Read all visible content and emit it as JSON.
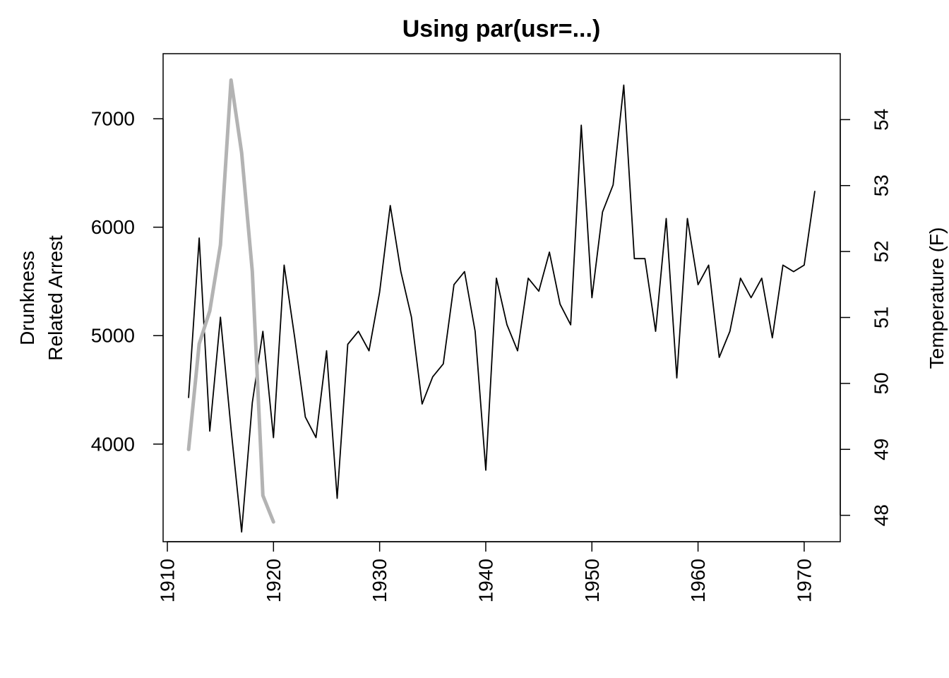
{
  "chart_data": {
    "type": "line",
    "title": "Using par(usr=...)",
    "xlabel": "",
    "ylabel_lines": [
      "Drunkness",
      "Related Arrest"
    ],
    "y2label": "Temperature (F)",
    "xlim": [
      1909.6,
      1973.4
    ],
    "ylim": [
      3100,
      7600
    ],
    "y2lim": [
      47.6,
      55.0
    ],
    "x_ticks": [
      1910,
      1920,
      1930,
      1940,
      1950,
      1960,
      1970
    ],
    "y_ticks": [
      4000,
      5000,
      6000,
      7000
    ],
    "y2_ticks": [
      48,
      49,
      50,
      51,
      52,
      53,
      54
    ],
    "colors": {
      "arrests": "#000000",
      "temperature": "#b3b3b3"
    },
    "series": [
      {
        "axis": "left",
        "x": [
          1912,
          1913,
          1914,
          1915,
          1916,
          1917,
          1918,
          1919,
          1920,
          1921,
          1922,
          1923,
          1924,
          1925,
          1926,
          1927,
          1928,
          1929,
          1930,
          1931,
          1932,
          1933,
          1934,
          1935,
          1936,
          1937,
          1938,
          1939,
          1940,
          1941,
          1942,
          1943,
          1944,
          1945,
          1946,
          1947,
          1948,
          1949,
          1950,
          1951,
          1952,
          1953,
          1954,
          1955,
          1956,
          1957,
          1958,
          1959,
          1960,
          1961,
          1962,
          1963,
          1964,
          1965,
          1966,
          1967,
          1968,
          1969,
          1970,
          1971
        ],
        "values": [
          4430,
          5900,
          4120,
          5170,
          4140,
          3190,
          4380,
          5040,
          4060,
          5650,
          4980,
          4250,
          4060,
          4860,
          3500,
          4920,
          5040,
          4860,
          5400,
          6200,
          5590,
          5170,
          4370,
          4620,
          4740,
          5470,
          5590,
          5040,
          3760,
          5530,
          5100,
          4860,
          5530,
          5410,
          5770,
          5290,
          5100,
          6940,
          5350,
          6140,
          6390,
          7310,
          5710,
          5710,
          5040,
          6080,
          4610,
          6080,
          5470,
          5650,
          4800,
          5040,
          5530,
          5350,
          5530,
          4980,
          5650,
          5590,
          5650,
          6330
        ]
      },
      {
        "axis": "right",
        "x": [
          1912,
          1913,
          1914,
          1915,
          1916,
          1917,
          1918,
          1919,
          1920
        ],
        "values": [
          49.0,
          50.6,
          51.1,
          52.1,
          54.6,
          53.5,
          51.7,
          48.3,
          47.9
        ]
      }
    ]
  }
}
